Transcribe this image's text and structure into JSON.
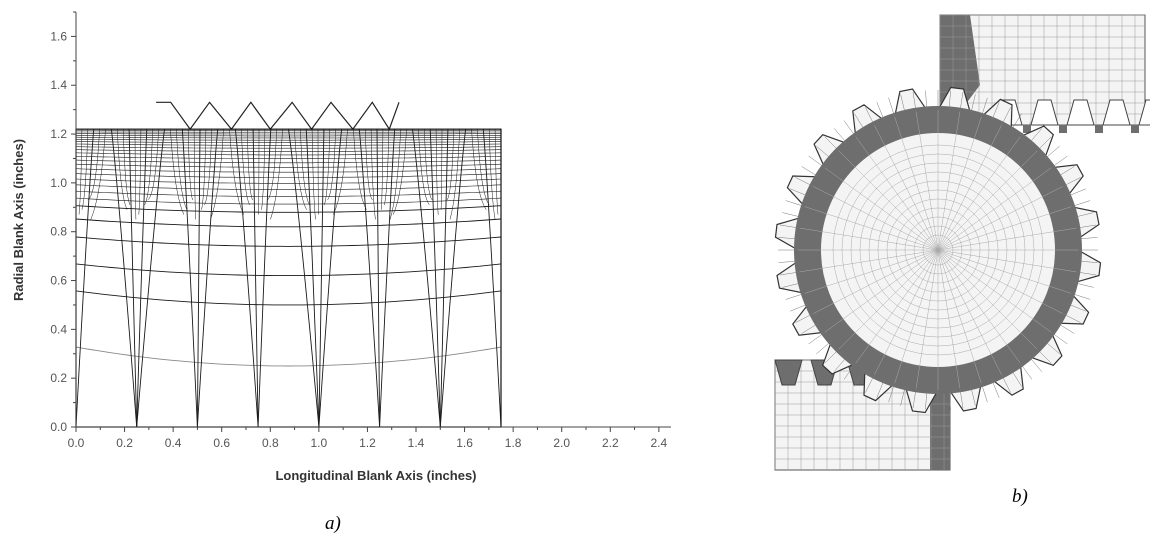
{
  "panel_a": {
    "caption": "a)",
    "xlabel": "Longitudinal Blank Axis (inches)",
    "ylabel": "Radial Blank Axis (inches)",
    "x_ticks": [
      "0.0",
      "0.2",
      "0.4",
      "0.6",
      "0.8",
      "1.0",
      "1.2",
      "1.4",
      "1.6",
      "1.8",
      "2.0",
      "2.2",
      "2.4"
    ],
    "y_ticks": [
      "0.0",
      "0.2",
      "0.4",
      "0.6",
      "0.8",
      "1.0",
      "1.2",
      "1.4",
      "1.6"
    ]
  },
  "panel_b": {
    "caption": "b)"
  },
  "chart_data": {
    "type": "scatter",
    "xlabel": "Longitudinal Blank Axis (inches)",
    "ylabel": "Radial Blank Axis (inches)",
    "xlim": [
      0.0,
      2.45
    ],
    "ylim": [
      0.0,
      1.7
    ],
    "blank_outline": {
      "x_max": 1.75,
      "y_max": 1.22
    },
    "die_profile": {
      "x": [
        0.33,
        0.39,
        0.47,
        0.55,
        0.64,
        0.72,
        0.8,
        0.89,
        0.97,
        1.05,
        1.14,
        1.22,
        1.29,
        1.33
      ],
      "y": [
        1.33,
        1.33,
        1.22,
        1.33,
        1.22,
        1.33,
        1.22,
        1.33,
        1.22,
        1.33,
        1.22,
        1.33,
        1.22,
        1.33
      ]
    },
    "grid": false
  },
  "colors": {
    "mesh": "#1a1a1a",
    "mesh_dark": "#6e6e6e",
    "mesh_light": "#f4f4f4",
    "axis": "#444444"
  }
}
